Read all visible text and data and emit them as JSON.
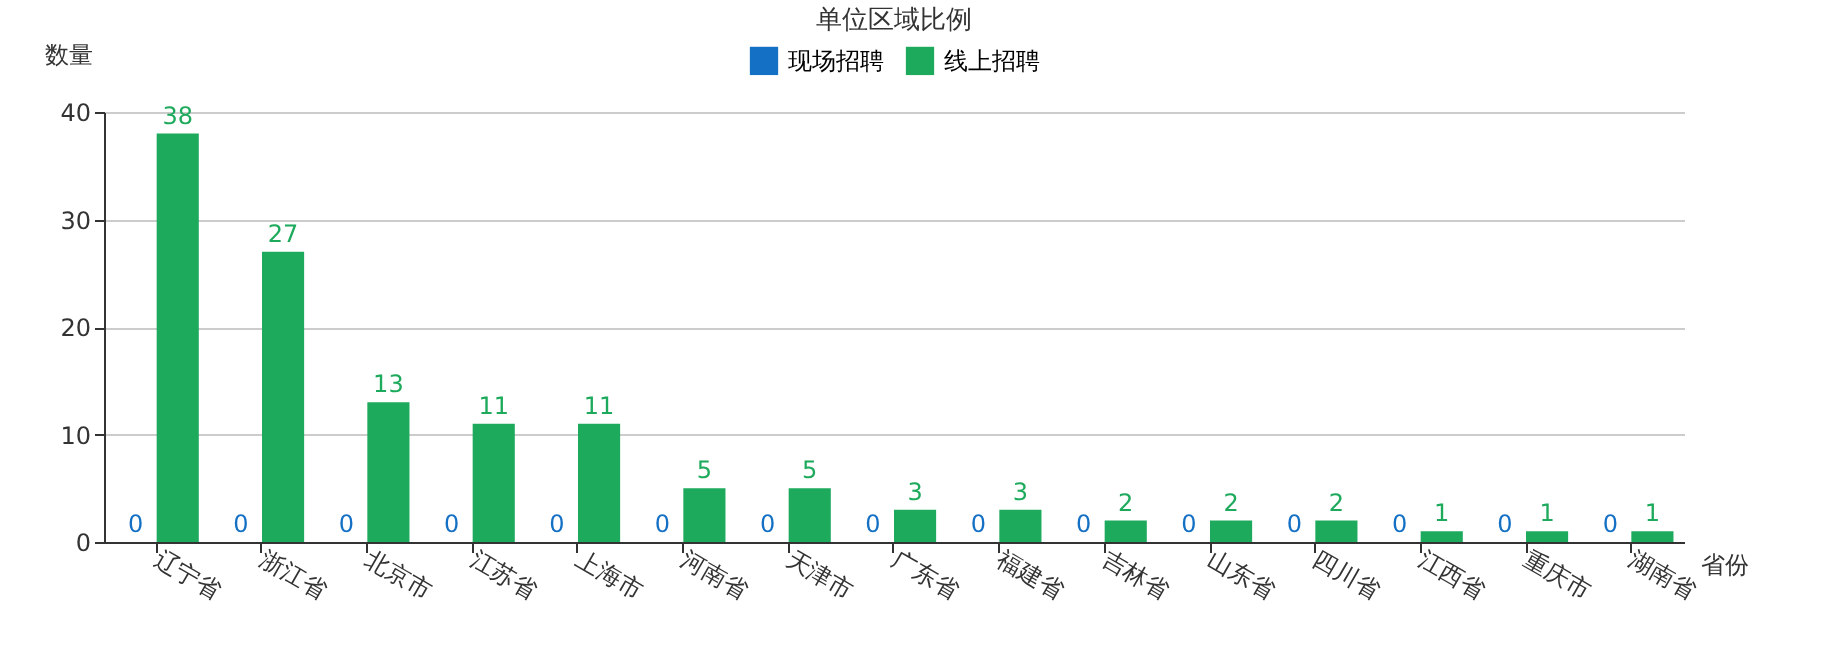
{
  "chart_data": {
    "type": "bar",
    "title": "单位区域比例",
    "xlabel": "省份",
    "ylabel": "数量",
    "categories": [
      "辽宁省",
      "浙江省",
      "北京市",
      "江苏省",
      "上海市",
      "河南省",
      "天津市",
      "广东省",
      "福建省",
      "吉林省",
      "山东省",
      "四川省",
      "江西省",
      "重庆市",
      "湖南省"
    ],
    "series": [
      {
        "name": "现场招聘",
        "color": "#1470c4",
        "values": [
          0,
          0,
          0,
          0,
          0,
          0,
          0,
          0,
          0,
          0,
          0,
          0,
          0,
          0,
          0
        ]
      },
      {
        "name": "线上招聘",
        "color": "#1eaa5c",
        "values": [
          38,
          27,
          13,
          11,
          11,
          5,
          5,
          3,
          3,
          2,
          2,
          2,
          1,
          1,
          1
        ]
      }
    ],
    "ylim": [
      0,
      40
    ],
    "yticks": [
      0,
      10,
      20,
      30,
      40
    ],
    "grid": "y",
    "legend": "top",
    "data_labels": true
  }
}
